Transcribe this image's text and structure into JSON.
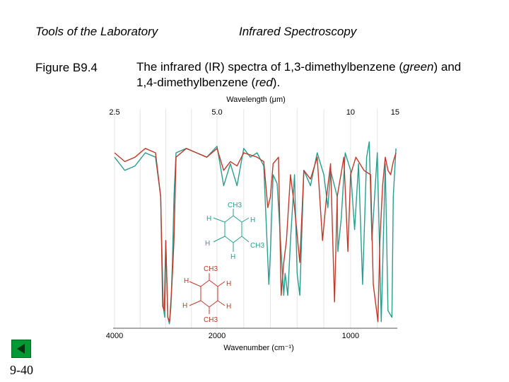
{
  "header": {
    "left_title": "Tools of the Laboratory",
    "right_title": "Infrared Spectroscopy"
  },
  "figure": {
    "label": "Figure B9.4",
    "caption_pre": "The infrared (IR) spectra of 1,3-dimethylbenzene (",
    "caption_green": "green",
    "caption_mid": ") and 1,4-dimethylbenzene (",
    "caption_red": "red",
    "caption_post": ")."
  },
  "chart_data": {
    "type": "line",
    "top_axis": {
      "label": "Wavelength (μm)",
      "ticks": [
        "2.5",
        "5.0",
        "10",
        "15"
      ]
    },
    "bottom_axis": {
      "label": "Wavenumber (cm⁻¹)",
      "ticks": [
        "4000",
        "2000",
        "1000"
      ]
    },
    "xlim": [
      4000,
      650
    ],
    "series": [
      {
        "color": "#2a9d8f",
        "x": [
          4000,
          3800,
          3600,
          3400,
          3200,
          3100,
          3050,
          3020,
          3000,
          2960,
          2930,
          2900,
          2870,
          2840,
          2800,
          2600,
          2400,
          2200,
          2000,
          1950,
          1900,
          1850,
          1800,
          1750,
          1700,
          1650,
          1612,
          1600,
          1580,
          1550,
          1500,
          1490,
          1470,
          1450,
          1420,
          1400,
          1380,
          1350,
          1300,
          1250,
          1200,
          1170,
          1150,
          1100,
          1095,
          1070,
          1040,
          1000,
          970,
          940,
          910,
          880,
          860,
          840,
          800,
          770,
          740,
          720,
          690,
          680,
          660
        ],
        "y": [
          0.78,
          0.72,
          0.74,
          0.8,
          0.78,
          0.6,
          0.1,
          0.05,
          0.4,
          0.05,
          0.02,
          0.1,
          0.3,
          0.6,
          0.8,
          0.82,
          0.8,
          0.78,
          0.83,
          0.65,
          0.75,
          0.65,
          0.82,
          0.78,
          0.8,
          0.74,
          0.2,
          0.35,
          0.7,
          0.66,
          0.15,
          0.25,
          0.15,
          0.4,
          0.7,
          0.25,
          0.15,
          0.72,
          0.65,
          0.8,
          0.7,
          0.55,
          0.72,
          0.6,
          0.35,
          0.5,
          0.8,
          0.72,
          0.45,
          0.75,
          0.2,
          0.78,
          0.85,
          0.4,
          0.8,
          0.03,
          0.75,
          0.08,
          0.05,
          0.6,
          0.82
        ]
      },
      {
        "color": "#c0392b",
        "x": [
          4000,
          3800,
          3600,
          3400,
          3200,
          3100,
          3060,
          3030,
          3000,
          2960,
          2925,
          2880,
          2840,
          2800,
          2600,
          2400,
          2200,
          2000,
          1950,
          1900,
          1850,
          1800,
          1700,
          1650,
          1620,
          1600,
          1580,
          1540,
          1520,
          1500,
          1480,
          1450,
          1420,
          1380,
          1350,
          1300,
          1250,
          1210,
          1180,
          1150,
          1120,
          1100,
          1050,
          1020,
          1000,
          960,
          900,
          850,
          830,
          795,
          780,
          760,
          740,
          720,
          700,
          680,
          660
        ],
        "y": [
          0.8,
          0.76,
          0.78,
          0.82,
          0.8,
          0.6,
          0.1,
          0.08,
          0.4,
          0.05,
          0.03,
          0.2,
          0.4,
          0.78,
          0.82,
          0.8,
          0.78,
          0.82,
          0.72,
          0.76,
          0.74,
          0.8,
          0.78,
          0.76,
          0.55,
          0.6,
          0.75,
          0.78,
          0.15,
          0.3,
          0.4,
          0.7,
          0.55,
          0.3,
          0.72,
          0.68,
          0.78,
          0.4,
          0.6,
          0.75,
          0.12,
          0.6,
          0.78,
          0.35,
          0.7,
          0.78,
          0.72,
          0.7,
          0.2,
          0.03,
          0.4,
          0.65,
          0.78,
          0.72,
          0.7,
          0.76,
          0.8
        ]
      }
    ]
  },
  "structures": {
    "meta": {
      "color": "#2a9d8f",
      "atoms": [
        "CH3",
        "H",
        "H",
        "H",
        "H",
        "CH3",
        "C",
        "C",
        "C",
        "C",
        "C",
        "C",
        "H"
      ]
    },
    "para": {
      "color": "#c0392b",
      "atoms": [
        "CH3",
        "H",
        "H",
        "H",
        "H",
        "CH3",
        "C",
        "C",
        "C",
        "C",
        "C",
        "C"
      ]
    }
  },
  "footer": {
    "slide_number": "9-40",
    "nav_icon": "back-arrow-icon",
    "nav_color": "#009933"
  }
}
